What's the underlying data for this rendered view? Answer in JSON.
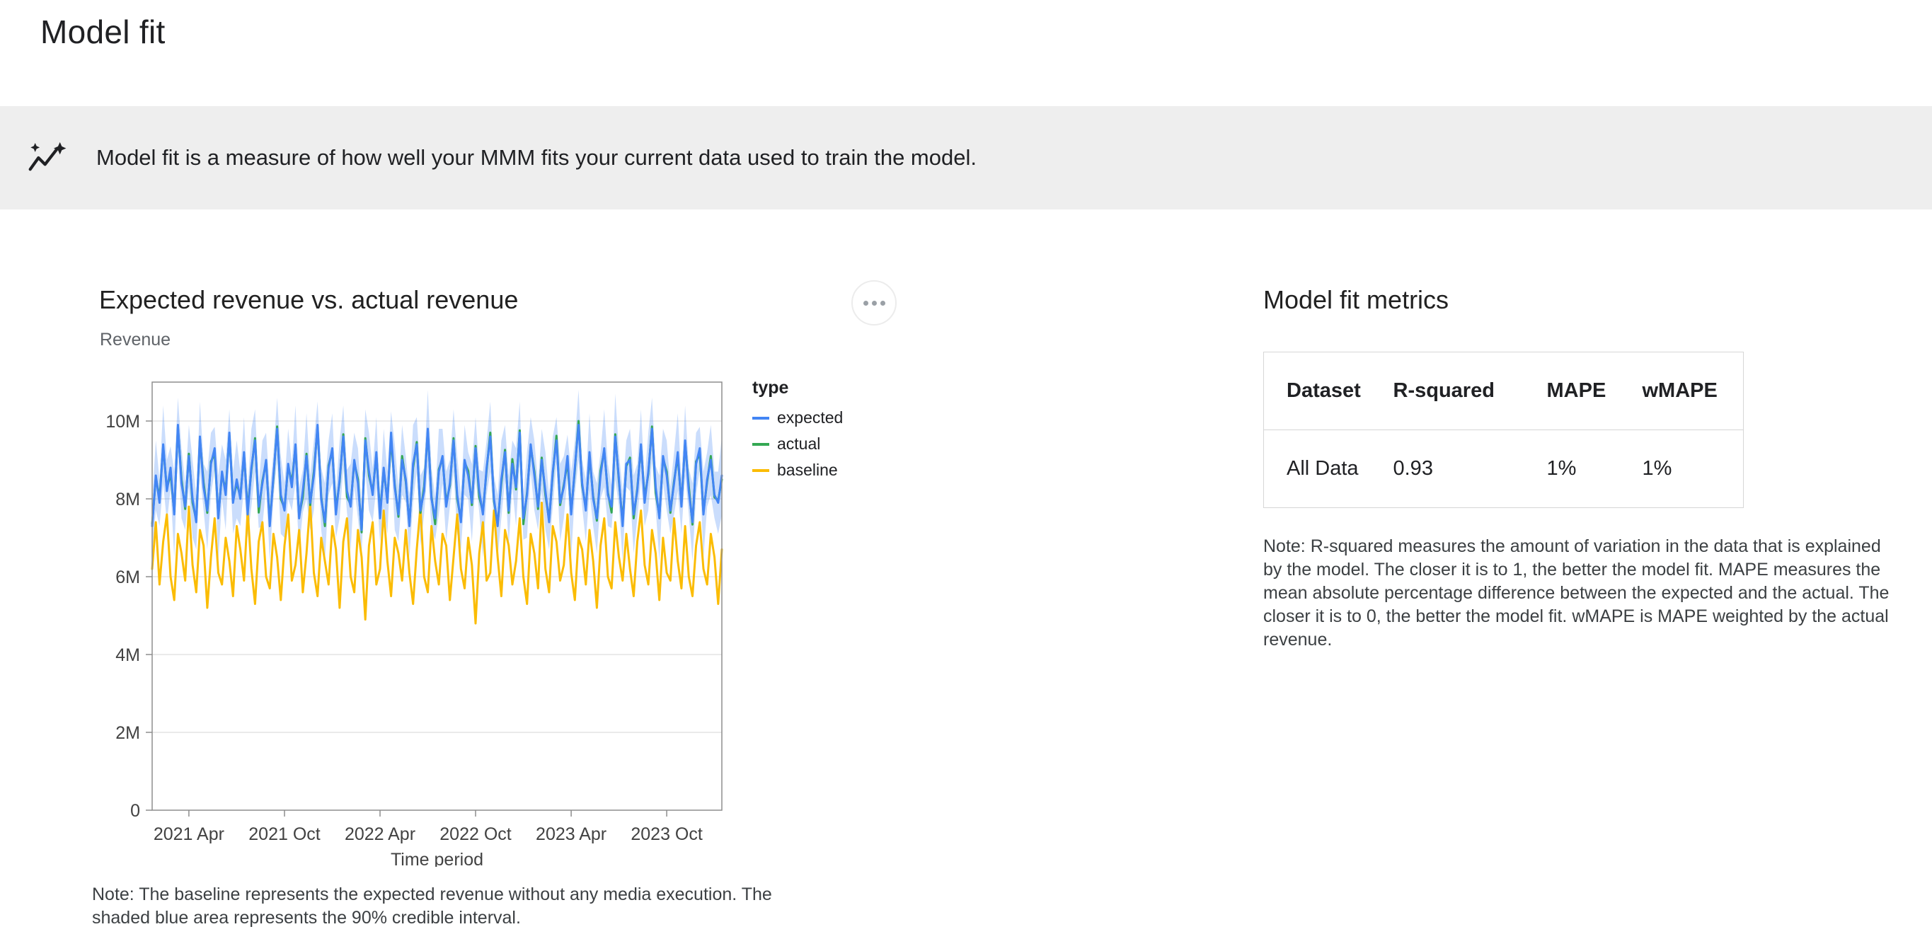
{
  "header": {
    "title": "Model fit"
  },
  "banner": {
    "text": "Model fit is a measure of how well your MMM fits your current data used to train the model."
  },
  "icons": {
    "banner_icon": "sparkline-insights-icon",
    "chart_menu_icon": "more-horizontal-icon"
  },
  "chart": {
    "title": "Expected revenue vs. actual revenue",
    "y_axis_title": "Revenue",
    "legend_title": "type",
    "note": "Note: The baseline represents the expected revenue without any media execution. The shaded blue area represents the 90% credible interval."
  },
  "metrics": {
    "title": "Model fit metrics",
    "table": {
      "headers": [
        "Dataset",
        "R-squared",
        "MAPE",
        "wMAPE"
      ],
      "rows": [
        [
          "All Data",
          "0.93",
          "1%",
          "1%"
        ]
      ]
    },
    "note": "Note: R-squared measures the amount of variation in the data that is explained by the model. The closer it is to 1, the better the model fit. MAPE measures the mean absolute percentage difference between the expected and the actual. The closer it is to 0, the better the model fit. wMAPE is MAPE weighted by the actual revenue."
  },
  "chart_data": {
    "type": "line",
    "title": "Expected revenue vs. actual revenue",
    "xlabel": "Time period",
    "ylabel": "Revenue",
    "unit": "millions",
    "ylim": [
      0,
      11
    ],
    "grid": true,
    "legend_position": "right",
    "y_ticks": [
      {
        "value": 0,
        "label": "0"
      },
      {
        "value": 2,
        "label": "2M"
      },
      {
        "value": 4,
        "label": "4M"
      },
      {
        "value": 6,
        "label": "6M"
      },
      {
        "value": 8,
        "label": "8M"
      },
      {
        "value": 10,
        "label": "10M"
      }
    ],
    "x_ticks": [
      {
        "index": 10,
        "label": "2021 Apr"
      },
      {
        "index": 36,
        "label": "2021 Oct"
      },
      {
        "index": 62,
        "label": "2022 Apr"
      },
      {
        "index": 88,
        "label": "2022 Oct"
      },
      {
        "index": 114,
        "label": "2023 Apr"
      },
      {
        "index": 140,
        "label": "2023 Oct"
      }
    ],
    "series": [
      {
        "name": "expected",
        "color": "#4285f4",
        "values": [
          7.3,
          8.6,
          7.9,
          9.4,
          8.2,
          8.8,
          7.6,
          9.9,
          8.4,
          7.8,
          9.1,
          8.0,
          7.4,
          9.6,
          8.3,
          7.7,
          8.9,
          9.3,
          7.5,
          8.7,
          8.1,
          9.7,
          7.9,
          8.5,
          8.0,
          9.2,
          7.6,
          8.8,
          9.5,
          7.8,
          8.4,
          9.0,
          7.3,
          8.6,
          9.8,
          8.1,
          7.7,
          8.9,
          8.3,
          9.4,
          7.5,
          8.2,
          9.1,
          7.9,
          8.6,
          9.9,
          8.0,
          7.4,
          8.8,
          9.3,
          7.6,
          8.5,
          9.6,
          8.2,
          7.8,
          9.0,
          8.4,
          7.2,
          9.5,
          8.7,
          8.1,
          9.2,
          7.5,
          8.8,
          7.9,
          9.7,
          8.3,
          7.6,
          9.0,
          8.5,
          7.3,
          8.9,
          9.4,
          7.7,
          8.2,
          9.8,
          8.0,
          7.5,
          8.7,
          9.1,
          7.8,
          8.4,
          9.5,
          8.1,
          7.4,
          9.0,
          8.6,
          7.9,
          9.3,
          8.2,
          7.6,
          8.8,
          9.6,
          8.0,
          7.3,
          8.5,
          9.2,
          7.7,
          8.9,
          8.3,
          9.7,
          7.5,
          8.1,
          9.4,
          8.6,
          7.8,
          9.0,
          8.2,
          7.4,
          8.7,
          9.5,
          7.9,
          8.3,
          9.1,
          7.6,
          8.8,
          9.9,
          8.4,
          7.7,
          9.2,
          8.0,
          7.5,
          8.6,
          9.3,
          8.1,
          7.8,
          9.6,
          8.5,
          7.3,
          8.9,
          9.0,
          7.6,
          8.2,
          9.4,
          7.9,
          8.7,
          9.8,
          8.3,
          7.5,
          9.1,
          8.6,
          7.7,
          8.4,
          9.2,
          7.8,
          9.5,
          8.2,
          7.4,
          8.9,
          9.3,
          7.6,
          8.5,
          9.0,
          8.1,
          7.9,
          8.6
        ]
      },
      {
        "name": "actual",
        "color": "#34a853",
        "values": [
          7.36,
          8.54,
          8.02,
          9.34,
          8.26,
          8.65,
          7.66,
          9.84,
          8.5,
          7.74,
          9.16,
          7.9,
          7.46,
          9.54,
          8.42,
          7.64,
          8.96,
          9.15,
          7.56,
          8.64,
          8.2,
          9.64,
          7.96,
          8.4,
          8.06,
          9.14,
          7.72,
          8.74,
          9.56,
          7.65,
          8.46,
          8.94,
          7.4,
          8.54,
          9.86,
          8.0,
          7.76,
          8.84,
          8.42,
          9.34,
          7.56,
          8.05,
          9.16,
          7.84,
          8.7,
          9.84,
          8.06,
          7.3,
          8.86,
          9.24,
          7.72,
          8.44,
          9.66,
          8.05,
          7.86,
          8.94,
          8.5,
          7.14,
          9.56,
          8.6,
          8.16,
          9.14,
          7.62,
          8.74,
          7.96,
          9.55,
          8.36,
          7.54,
          9.1,
          8.44,
          7.36,
          8.8,
          9.46,
          7.64,
          8.32,
          9.74,
          8.06,
          7.35,
          8.76,
          9.04,
          7.9,
          8.34,
          9.56,
          8.0,
          7.46,
          8.94,
          8.72,
          7.84,
          9.36,
          8.05,
          7.66,
          8.74,
          9.7,
          7.94,
          7.36,
          8.4,
          9.26,
          7.64,
          9.02,
          8.24,
          9.76,
          7.35,
          8.16,
          9.34,
          8.7,
          7.74,
          9.06,
          8.1,
          7.46,
          8.64,
          9.62,
          7.84,
          8.36,
          8.95,
          7.66,
          8.74,
          10.0,
          8.34,
          7.76,
          9.1,
          8.06,
          7.44,
          8.72,
          9.24,
          8.16,
          7.65,
          9.66,
          8.44,
          7.4,
          8.84,
          9.06,
          7.5,
          8.26,
          9.34,
          8.02,
          8.64,
          9.86,
          8.15,
          7.56,
          9.04,
          8.7,
          7.64,
          8.46,
          9.1,
          7.86,
          9.44,
          8.32,
          7.34,
          8.96,
          9.15,
          7.66,
          8.44,
          9.1,
          8.04,
          7.96,
          8.5
        ]
      },
      {
        "name": "baseline",
        "color": "#fbbc04",
        "values": [
          6.2,
          7.4,
          5.8,
          6.9,
          7.6,
          6.0,
          5.4,
          7.1,
          6.6,
          5.9,
          7.8,
          6.3,
          5.6,
          7.2,
          6.8,
          5.2,
          6.5,
          7.5,
          6.1,
          5.8,
          7.0,
          6.4,
          5.5,
          7.3,
          6.7,
          5.9,
          7.7,
          6.2,
          5.3,
          6.9,
          7.4,
          6.0,
          5.7,
          7.1,
          6.5,
          5.4,
          6.8,
          7.6,
          5.9,
          6.3,
          7.2,
          5.6,
          6.6,
          7.9,
          6.1,
          5.5,
          7.0,
          6.4,
          5.8,
          7.3,
          6.7,
          5.2,
          6.9,
          7.5,
          6.0,
          5.6,
          7.2,
          6.5,
          4.9,
          6.8,
          7.4,
          5.8,
          6.2,
          7.7,
          6.4,
          5.5,
          7.0,
          6.6,
          5.9,
          7.2,
          6.1,
          5.3,
          6.7,
          7.8,
          6.0,
          5.6,
          7.3,
          6.4,
          5.8,
          7.1,
          6.8,
          5.4,
          6.5,
          7.6,
          6.2,
          5.7,
          7.0,
          6.3,
          4.8,
          6.6,
          7.4,
          5.9,
          6.1,
          7.7,
          6.5,
          5.5,
          7.2,
          6.8,
          5.8,
          6.4,
          7.5,
          6.0,
          5.3,
          7.1,
          6.6,
          5.7,
          7.9,
          6.2,
          5.6,
          7.3,
          6.9,
          5.9,
          6.3,
          7.6,
          6.1,
          5.4,
          7.0,
          6.7,
          5.8,
          7.2,
          6.4,
          5.2,
          6.8,
          7.5,
          6.0,
          5.7,
          7.4,
          6.5,
          5.9,
          7.1,
          6.2,
          5.5,
          6.9,
          7.7,
          6.3,
          5.8,
          7.2,
          6.6,
          5.4,
          7.0,
          6.1,
          5.9,
          7.5,
          6.4,
          5.7,
          7.3,
          6.0,
          5.5,
          6.8,
          7.4,
          6.2,
          5.8,
          7.1,
          6.5,
          5.3,
          6.7
        ]
      }
    ],
    "credible_interval": {
      "level": "90%",
      "color": "rgba(66,133,244,0.28)",
      "around_series": "expected",
      "halfwidth": [
        0.7,
        0.9,
        0.6,
        1.0,
        0.8,
        0.55,
        1.1,
        0.7,
        0.9,
        0.6,
        0.8,
        1.0,
        0.7,
        0.9,
        0.6,
        1.0,
        0.8,
        0.55,
        1.1,
        0.7,
        0.9,
        0.6,
        0.8,
        1.0,
        0.7,
        0.9,
        0.6,
        1.0,
        0.8,
        0.55,
        1.1,
        0.7,
        0.9,
        0.6,
        0.8,
        1.0,
        0.7,
        0.9,
        0.6,
        1.0,
        0.8,
        0.55,
        1.1,
        0.7,
        0.9,
        0.6,
        0.8,
        1.0,
        0.7,
        0.9,
        0.6,
        1.0,
        0.8,
        0.55,
        1.1,
        0.7,
        0.9,
        0.6,
        0.8,
        1.0,
        0.7,
        0.9,
        0.6,
        1.0,
        0.8,
        0.55,
        1.1,
        0.7,
        0.9,
        0.6,
        0.8,
        1.0,
        0.7,
        0.9,
        0.6,
        1.0,
        0.8,
        0.55,
        1.1,
        0.7,
        0.9,
        0.6,
        0.8,
        1.0,
        0.7,
        0.9,
        0.6,
        1.0,
        0.8,
        0.55,
        1.1,
        0.7,
        0.9,
        0.6,
        0.8,
        1.0,
        0.7,
        0.9,
        0.6,
        1.0,
        0.8,
        0.55,
        1.1,
        0.7,
        0.9,
        0.6,
        0.8,
        1.0,
        0.7,
        0.9,
        0.6,
        1.0,
        0.8,
        0.55,
        1.1,
        0.7,
        0.9,
        0.6,
        0.8,
        1.0,
        0.7,
        0.9,
        0.6,
        1.0,
        0.8,
        0.55,
        1.1,
        0.7,
        0.9,
        0.6,
        0.8,
        1.0,
        0.7,
        0.9,
        0.6,
        1.0,
        0.8,
        0.55,
        1.1,
        0.7,
        0.9,
        0.6,
        0.8,
        1.0,
        0.7,
        0.9,
        0.6,
        1.0,
        0.8,
        0.55,
        1.1,
        0.7,
        0.9,
        0.6,
        0.8,
        1.0
      ]
    }
  }
}
